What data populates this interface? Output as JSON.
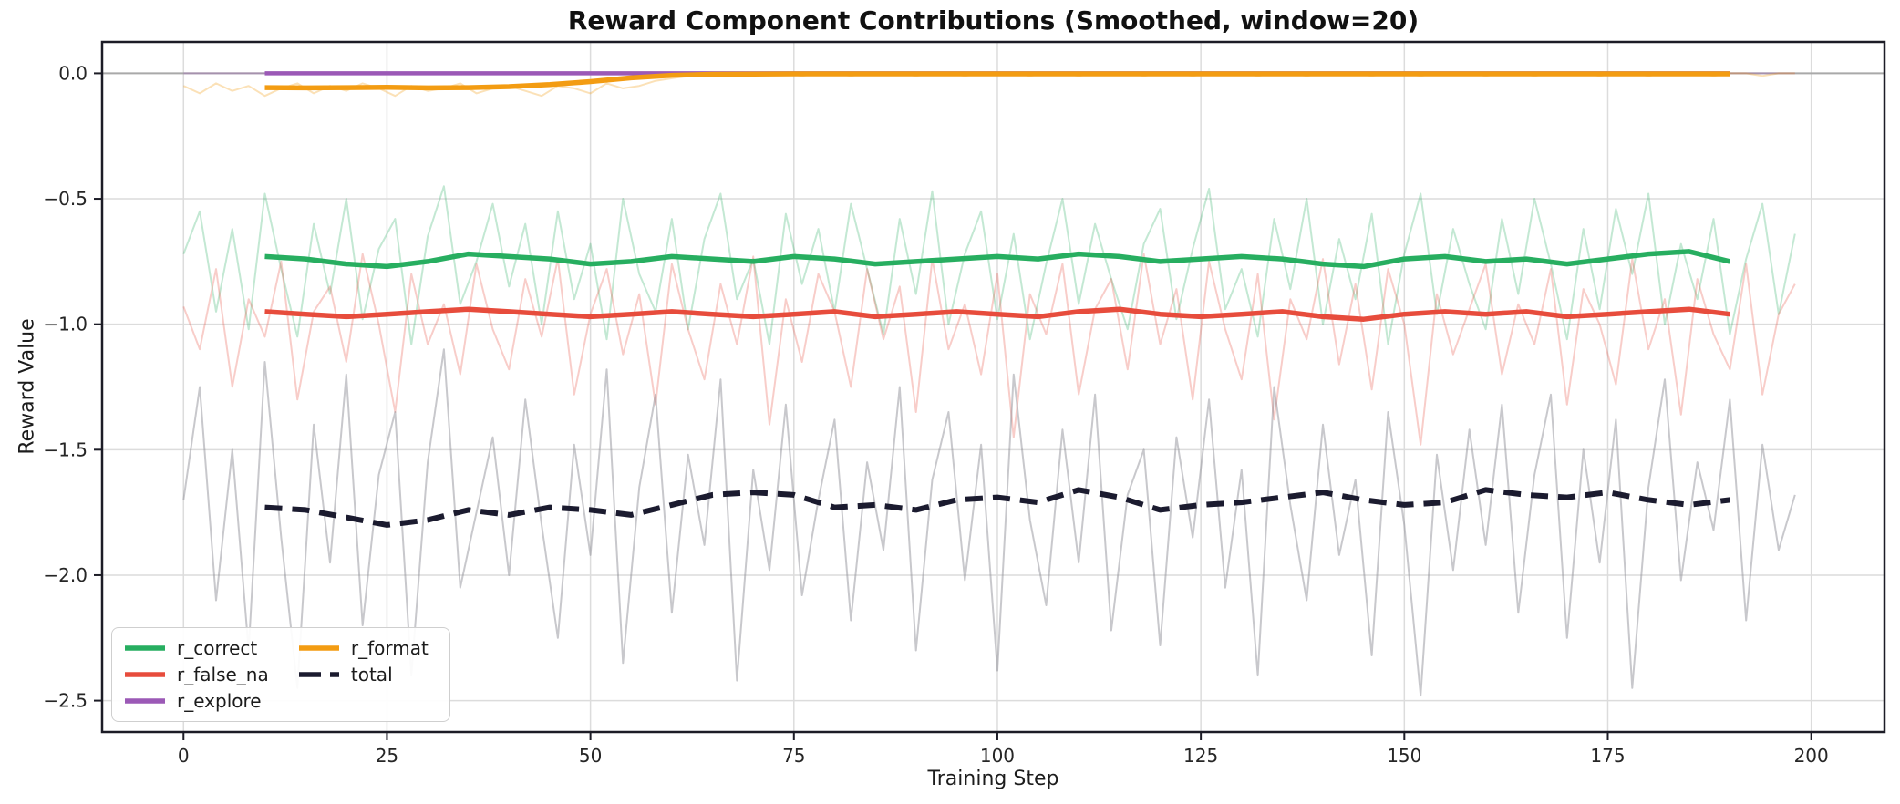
{
  "chart_data": {
    "type": "line",
    "title": "Reward Component Contributions (Smoothed, window=20)",
    "xlabel": "Training Step",
    "ylabel": "Reward Value",
    "smoothing_window": 20,
    "xlim": [
      -10,
      209
    ],
    "ylim": [
      -2.625,
      0.125
    ],
    "grid": true,
    "xticks": {
      "values": [
        0,
        25,
        50,
        75,
        100,
        125,
        150,
        175,
        200
      ],
      "labels": [
        "0",
        "25",
        "50",
        "75",
        "100",
        "125",
        "150",
        "175",
        "200"
      ]
    },
    "yticks": {
      "values": [
        0.0,
        -0.5,
        -1.0,
        -1.5,
        -2.0,
        -2.5
      ],
      "labels": [
        "0.0",
        "−0.5",
        "−1.0",
        "−1.5",
        "−2.0",
        "−2.5"
      ]
    },
    "colors": {
      "grid": "#dcdcdc",
      "zero_line": "#a9a9a9",
      "spine": "#1c1c26",
      "tick_label": "#262626"
    },
    "legend": {
      "location": "lower left",
      "ncol": 2,
      "order": [
        "r_correct",
        "r_false_na",
        "r_explore",
        "r_format",
        "total"
      ]
    },
    "x_raw": [
      0,
      2,
      4,
      6,
      8,
      10,
      12,
      14,
      16,
      18,
      20,
      22,
      24,
      26,
      28,
      30,
      32,
      34,
      36,
      38,
      40,
      42,
      44,
      46,
      48,
      50,
      52,
      54,
      56,
      58,
      60,
      62,
      64,
      66,
      68,
      70,
      72,
      74,
      76,
      78,
      80,
      82,
      84,
      86,
      88,
      90,
      92,
      94,
      96,
      98,
      100,
      102,
      104,
      106,
      108,
      110,
      112,
      114,
      116,
      118,
      120,
      122,
      124,
      126,
      128,
      130,
      132,
      134,
      136,
      138,
      140,
      142,
      144,
      146,
      148,
      150,
      152,
      154,
      156,
      158,
      160,
      162,
      164,
      166,
      168,
      170,
      172,
      174,
      176,
      178,
      180,
      182,
      184,
      186,
      188,
      190,
      192,
      194,
      196,
      198
    ],
    "x_smoothed": [
      10,
      15,
      20,
      25,
      30,
      35,
      40,
      45,
      50,
      55,
      60,
      65,
      70,
      75,
      80,
      85,
      90,
      95,
      100,
      105,
      110,
      115,
      120,
      125,
      130,
      135,
      140,
      145,
      150,
      155,
      160,
      165,
      170,
      175,
      180,
      185,
      190
    ],
    "series": [
      {
        "name": "r_correct",
        "color": "#27ae60",
        "style": "solid",
        "raw_alpha": 0.28,
        "smoothed": [
          -0.73,
          -0.74,
          -0.76,
          -0.77,
          -0.75,
          -0.72,
          -0.73,
          -0.74,
          -0.76,
          -0.75,
          -0.73,
          -0.74,
          -0.75,
          -0.73,
          -0.74,
          -0.76,
          -0.75,
          -0.74,
          -0.73,
          -0.74,
          -0.72,
          -0.73,
          -0.75,
          -0.74,
          -0.73,
          -0.74,
          -0.76,
          -0.77,
          -0.74,
          -0.73,
          -0.75,
          -0.74,
          -0.76,
          -0.74,
          -0.72,
          -0.71,
          -0.75
        ],
        "raw": [
          -0.72,
          -0.55,
          -0.95,
          -0.62,
          -1.02,
          -0.48,
          -0.78,
          -1.05,
          -0.6,
          -0.88,
          -0.5,
          -0.98,
          -0.7,
          -0.58,
          -1.08,
          -0.65,
          -0.45,
          -0.92,
          -0.75,
          -0.52,
          -0.85,
          -0.6,
          -1.0,
          -0.55,
          -0.9,
          -0.68,
          -1.06,
          -0.5,
          -0.8,
          -0.95,
          -0.58,
          -1.02,
          -0.66,
          -0.48,
          -0.9,
          -0.74,
          -1.08,
          -0.56,
          -0.84,
          -0.62,
          -0.95,
          -0.52,
          -0.78,
          -1.04,
          -0.58,
          -0.88,
          -0.47,
          -1.0,
          -0.72,
          -0.55,
          -0.98,
          -0.64,
          -1.06,
          -0.76,
          -0.5,
          -0.92,
          -0.6,
          -0.82,
          -1.02,
          -0.68,
          -0.54,
          -0.98,
          -0.7,
          -0.46,
          -0.94,
          -0.78,
          -1.05,
          -0.58,
          -0.86,
          -0.5,
          -1.0,
          -0.66,
          -0.9,
          -0.56,
          -1.08,
          -0.72,
          -0.48,
          -0.96,
          -0.62,
          -0.84,
          -1.02,
          -0.58,
          -0.88,
          -0.5,
          -0.76,
          -1.06,
          -0.62,
          -0.94,
          -0.54,
          -0.8,
          -0.48,
          -1.0,
          -0.68,
          -0.9,
          -0.58,
          -1.04,
          -0.74,
          -0.52,
          -0.96,
          -0.64
        ]
      },
      {
        "name": "r_false_na",
        "color": "#e74c3c",
        "style": "solid",
        "raw_alpha": 0.28,
        "smoothed": [
          -0.95,
          -0.96,
          -0.97,
          -0.96,
          -0.95,
          -0.94,
          -0.95,
          -0.96,
          -0.97,
          -0.96,
          -0.95,
          -0.96,
          -0.97,
          -0.96,
          -0.95,
          -0.97,
          -0.96,
          -0.95,
          -0.96,
          -0.97,
          -0.95,
          -0.94,
          -0.96,
          -0.97,
          -0.96,
          -0.95,
          -0.97,
          -0.98,
          -0.96,
          -0.95,
          -0.96,
          -0.95,
          -0.97,
          -0.96,
          -0.95,
          -0.94,
          -0.96
        ],
        "raw": [
          -0.93,
          -1.1,
          -0.78,
          -1.25,
          -0.9,
          -1.05,
          -0.75,
          -1.3,
          -0.95,
          -0.85,
          -1.15,
          -0.72,
          -1.0,
          -1.35,
          -0.8,
          -1.08,
          -0.92,
          -1.2,
          -0.76,
          -1.02,
          -1.18,
          -0.82,
          -1.05,
          -0.74,
          -1.28,
          -0.96,
          -0.78,
          -1.12,
          -0.88,
          -1.32,
          -0.76,
          -1.02,
          -1.22,
          -0.84,
          -1.08,
          -0.73,
          -1.4,
          -0.9,
          -1.15,
          -0.8,
          -0.95,
          -1.25,
          -0.78,
          -1.06,
          -0.85,
          -1.35,
          -0.74,
          -1.1,
          -0.92,
          -1.2,
          -0.8,
          -1.45,
          -0.88,
          -1.04,
          -0.76,
          -1.28,
          -0.94,
          -0.82,
          -1.18,
          -0.72,
          -1.08,
          -0.86,
          -1.3,
          -0.75,
          -1.02,
          -1.22,
          -0.8,
          -1.38,
          -0.9,
          -1.06,
          -0.74,
          -1.16,
          -0.84,
          -1.26,
          -0.78,
          -1.0,
          -1.48,
          -0.88,
          -1.12,
          -0.94,
          -0.76,
          -1.2,
          -0.92,
          -1.08,
          -0.78,
          -1.32,
          -0.86,
          -1.0,
          -1.24,
          -0.74,
          -1.1,
          -0.9,
          -1.36,
          -0.82,
          -1.04,
          -1.18,
          -0.76,
          -1.28,
          -0.96,
          -0.84
        ]
      },
      {
        "name": "r_explore",
        "color": "#9b59b6",
        "style": "solid",
        "raw_alpha": 0.3,
        "smoothed": [
          0,
          0,
          0,
          0,
          0,
          0,
          0,
          0,
          0,
          0,
          0,
          0,
          0,
          0,
          0,
          0,
          0,
          0,
          0,
          0,
          0,
          0,
          0,
          0,
          0,
          0,
          0,
          0,
          0,
          0,
          0,
          0,
          0,
          0,
          0,
          0,
          0
        ],
        "raw": [
          0,
          0,
          0,
          0,
          0,
          0,
          0,
          0,
          0,
          0,
          0,
          0,
          0,
          0,
          0,
          0,
          0,
          0,
          0,
          0,
          0,
          0,
          0,
          0,
          0,
          0,
          0,
          0,
          0,
          0,
          0,
          0,
          0,
          0,
          0,
          0,
          0,
          0,
          0,
          0,
          0,
          0,
          0,
          0,
          0,
          0,
          0,
          0,
          0,
          0,
          0,
          0,
          0,
          0,
          0,
          0,
          0,
          0,
          0,
          0,
          0,
          0,
          0,
          0,
          0,
          0,
          0,
          0,
          0,
          0,
          0,
          0,
          0,
          0,
          0,
          0,
          0,
          0,
          0,
          0,
          0,
          0,
          0,
          0,
          0,
          0,
          0,
          0,
          0,
          0,
          0,
          0,
          0,
          0,
          0,
          0,
          0,
          0,
          0,
          0
        ]
      },
      {
        "name": "r_format",
        "color": "#f39c12",
        "style": "solid",
        "raw_alpha": 0.3,
        "smoothed": [
          -0.057,
          -0.058,
          -0.057,
          -0.056,
          -0.058,
          -0.057,
          -0.053,
          -0.045,
          -0.033,
          -0.018,
          -0.008,
          -0.004,
          -0.003,
          -0.002,
          -0.002,
          -0.002,
          -0.002,
          -0.002,
          -0.002,
          -0.002,
          -0.002,
          -0.002,
          -0.002,
          -0.002,
          -0.002,
          -0.002,
          -0.002,
          -0.002,
          -0.002,
          -0.002,
          -0.002,
          -0.002,
          -0.002,
          -0.002,
          -0.002,
          -0.002,
          -0.002
        ],
        "raw": [
          -0.05,
          -0.08,
          -0.04,
          -0.07,
          -0.05,
          -0.09,
          -0.06,
          -0.04,
          -0.08,
          -0.05,
          -0.07,
          -0.04,
          -0.06,
          -0.09,
          -0.05,
          -0.07,
          -0.06,
          -0.04,
          -0.08,
          -0.06,
          -0.05,
          -0.07,
          -0.09,
          -0.05,
          -0.06,
          -0.08,
          -0.04,
          -0.06,
          -0.05,
          -0.03,
          -0.02,
          -0.01,
          -0.01,
          0,
          -0.01,
          0,
          0,
          0,
          -0.01,
          0,
          0,
          -0.01,
          0,
          0,
          0,
          -0.01,
          0,
          0,
          -0.01,
          0,
          0,
          0,
          -0.01,
          0,
          0,
          -0.01,
          0,
          0,
          0,
          -0.01,
          0,
          0,
          -0.01,
          0,
          0,
          0,
          -0.01,
          0,
          0,
          -0.01,
          0,
          0,
          0,
          -0.01,
          0,
          0,
          -0.01,
          0,
          0,
          0,
          -0.01,
          0,
          0,
          -0.01,
          0,
          0,
          0,
          -0.01,
          0,
          0,
          -0.01,
          0,
          0,
          0,
          -0.01,
          0,
          0,
          -0.01,
          0,
          0
        ]
      },
      {
        "name": "total",
        "color": "#1b1b2f",
        "style": "dashed",
        "raw_color": "#84848e",
        "raw_alpha": 0.45,
        "smoothed": [
          -1.73,
          -1.74,
          -1.77,
          -1.8,
          -1.78,
          -1.74,
          -1.76,
          -1.73,
          -1.74,
          -1.76,
          -1.72,
          -1.68,
          -1.67,
          -1.68,
          -1.73,
          -1.72,
          -1.74,
          -1.7,
          -1.69,
          -1.71,
          -1.66,
          -1.69,
          -1.74,
          -1.72,
          -1.71,
          -1.69,
          -1.67,
          -1.7,
          -1.72,
          -1.71,
          -1.66,
          -1.68,
          -1.69,
          -1.67,
          -1.7,
          -1.72,
          -1.7
        ],
        "raw": [
          -1.7,
          -1.25,
          -2.1,
          -1.5,
          -2.3,
          -1.15,
          -1.85,
          -2.45,
          -1.4,
          -1.95,
          -1.2,
          -2.2,
          -1.6,
          -1.35,
          -2.4,
          -1.55,
          -1.1,
          -2.05,
          -1.75,
          -1.45,
          -2.0,
          -1.3,
          -1.8,
          -2.25,
          -1.48,
          -1.92,
          -1.18,
          -2.35,
          -1.65,
          -1.28,
          -2.15,
          -1.52,
          -1.88,
          -1.22,
          -2.42,
          -1.58,
          -1.98,
          -1.32,
          -2.08,
          -1.7,
          -1.38,
          -2.18,
          -1.55,
          -1.9,
          -1.25,
          -2.3,
          -1.62,
          -1.35,
          -2.02,
          -1.48,
          -2.38,
          -1.2,
          -1.78,
          -2.12,
          -1.42,
          -1.95,
          -1.28,
          -2.22,
          -1.68,
          -1.5,
          -2.28,
          -1.45,
          -1.85,
          -1.3,
          -2.05,
          -1.58,
          -2.4,
          -1.25,
          -1.72,
          -2.1,
          -1.4,
          -1.92,
          -1.62,
          -2.32,
          -1.35,
          -1.8,
          -2.48,
          -1.52,
          -1.98,
          -1.42,
          -1.88,
          -1.32,
          -2.15,
          -1.6,
          -1.28,
          -2.25,
          -1.5,
          -1.95,
          -1.38,
          -2.45,
          -1.65,
          -1.22,
          -2.02,
          -1.55,
          -1.82,
          -1.3,
          -2.18,
          -1.48,
          -1.9,
          -1.68
        ]
      }
    ]
  }
}
